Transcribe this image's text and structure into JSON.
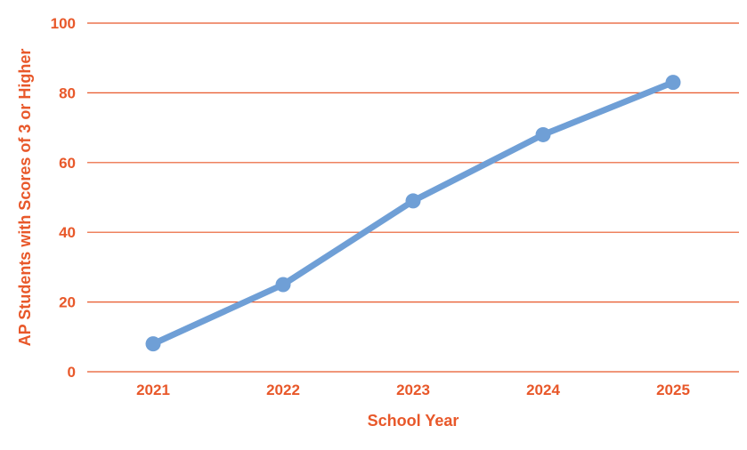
{
  "chart_data": {
    "type": "line",
    "x": [
      "2021",
      "2022",
      "2023",
      "2024",
      "2025"
    ],
    "series": [
      {
        "values": [
          8,
          25,
          49,
          68,
          83
        ],
        "color": "#6f9fd6"
      }
    ],
    "xlabel": "School Year",
    "ylabel": "AP Students with Scores of 3 or Higher",
    "ylim": [
      0,
      100
    ],
    "yticks": [
      0,
      20,
      40,
      60,
      80,
      100
    ],
    "grid": "horizontal",
    "gridColor": "#e8582a",
    "labelColor": "#e8582a",
    "legend": "none"
  }
}
